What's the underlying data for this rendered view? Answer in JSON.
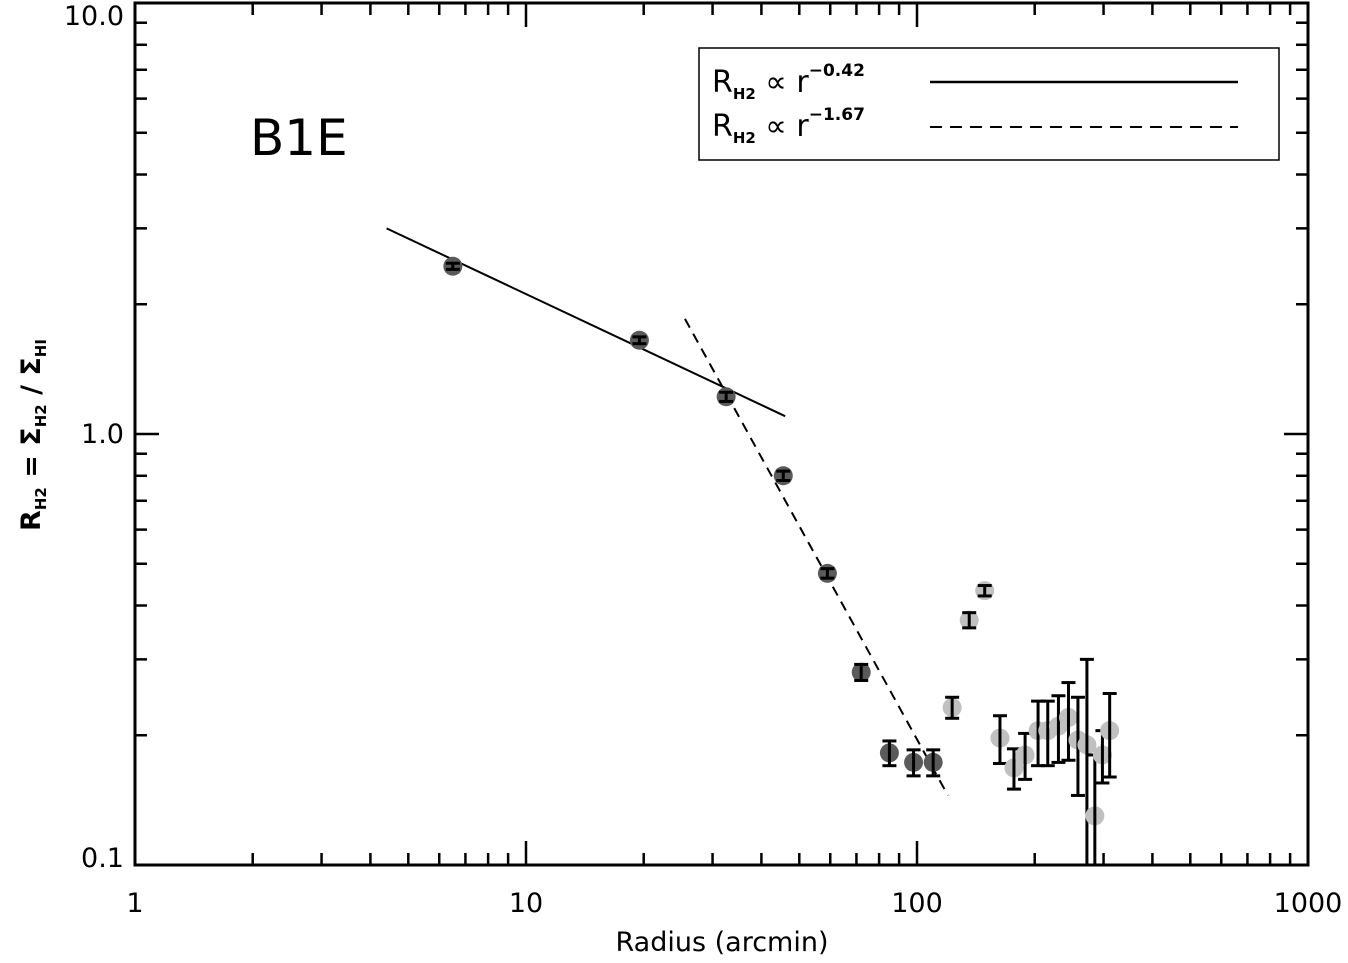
{
  "chart_data": {
    "type": "scatter",
    "xscale": "log",
    "yscale": "log",
    "xlim": [
      1,
      1000
    ],
    "ylim": [
      0.1,
      10.0
    ],
    "xlabel": "Radius (arcmin)",
    "ylabel": {
      "main": "R",
      "sub1": "H2",
      "eq": " = Σ",
      "sub2": "H2",
      "slash": " / Σ",
      "sub3": "HI"
    },
    "x_ticks": [
      {
        "value": 1,
        "label": "1"
      },
      {
        "value": 10,
        "label": "10"
      },
      {
        "value": 100,
        "label": "100"
      },
      {
        "value": 1000,
        "label": "1000"
      }
    ],
    "y_ticks": [
      {
        "value": 0.1,
        "label": "0.1"
      },
      {
        "value": 1.0,
        "label": "1.0"
      },
      {
        "value": 10.0,
        "label": "10.0"
      }
    ],
    "panel_label": "B1E",
    "colors": {
      "dark_point": "#5a5a5a",
      "light_point": "#c0c0c0",
      "axis": "#000000"
    },
    "legend": [
      {
        "main": "R",
        "sub": "H2",
        "mid": " ∝ r",
        "sup": "−0.42",
        "style": "solid"
      },
      {
        "main": "R",
        "sub": "H2",
        "mid": " ∝ r",
        "sup": "−1.67",
        "style": "dashed"
      }
    ],
    "fit_lines": [
      {
        "name": "solid",
        "style": "solid",
        "x": [
          4.4,
          46
        ],
        "y": [
          3.0,
          1.1
        ]
      },
      {
        "name": "dashed",
        "style": "dashed",
        "x": [
          25.5,
          120
        ],
        "y": [
          1.85,
          0.145
        ]
      }
    ],
    "points": [
      {
        "x": 6.5,
        "y": 2.45,
        "err": 0.04,
        "shade": "dark"
      },
      {
        "x": 19.5,
        "y": 1.65,
        "err": 0.03,
        "shade": "dark"
      },
      {
        "x": 32.5,
        "y": 1.22,
        "err": 0.03,
        "shade": "dark"
      },
      {
        "x": 45.5,
        "y": 0.8,
        "err": 0.02,
        "shade": "dark"
      },
      {
        "x": 59,
        "y": 0.475,
        "err": 0.012,
        "shade": "dark"
      },
      {
        "x": 72,
        "y": 0.28,
        "err": 0.012,
        "shade": "dark"
      },
      {
        "x": 85,
        "y": 0.182,
        "err": 0.012,
        "shade": "dark"
      },
      {
        "x": 98,
        "y": 0.173,
        "err": 0.012,
        "shade": "dark"
      },
      {
        "x": 110,
        "y": 0.173,
        "err": 0.012,
        "shade": "dark"
      },
      {
        "x": 123,
        "y": 0.232,
        "err": 0.013,
        "shade": "light"
      },
      {
        "x": 136,
        "y": 0.37,
        "err": 0.015,
        "shade": "light"
      },
      {
        "x": 149,
        "y": 0.433,
        "err": 0.012,
        "shade": "light"
      },
      {
        "x": 163,
        "y": 0.197,
        "err": 0.025,
        "shade": "light"
      },
      {
        "x": 177,
        "y": 0.168,
        "err": 0.018,
        "shade": "light"
      },
      {
        "x": 189,
        "y": 0.18,
        "err": 0.022,
        "shade": "light"
      },
      {
        "x": 204,
        "y": 0.205,
        "err": 0.035,
        "shade": "light"
      },
      {
        "x": 216,
        "y": 0.205,
        "err": 0.035,
        "shade": "light"
      },
      {
        "x": 230,
        "y": 0.21,
        "err": 0.037,
        "shade": "light"
      },
      {
        "x": 244,
        "y": 0.22,
        "err": 0.045,
        "shade": "light"
      },
      {
        "x": 258,
        "y": 0.195,
        "err": 0.05,
        "shade": "light"
      },
      {
        "x": 272,
        "y": 0.19,
        "err": 0.11,
        "shade": "light"
      },
      {
        "x": 285,
        "y": 0.13,
        "err": 0.05,
        "shade": "light"
      },
      {
        "x": 298,
        "y": 0.18,
        "err": 0.025,
        "shade": "light"
      },
      {
        "x": 311,
        "y": 0.205,
        "err": 0.045,
        "shade": "light"
      }
    ]
  }
}
